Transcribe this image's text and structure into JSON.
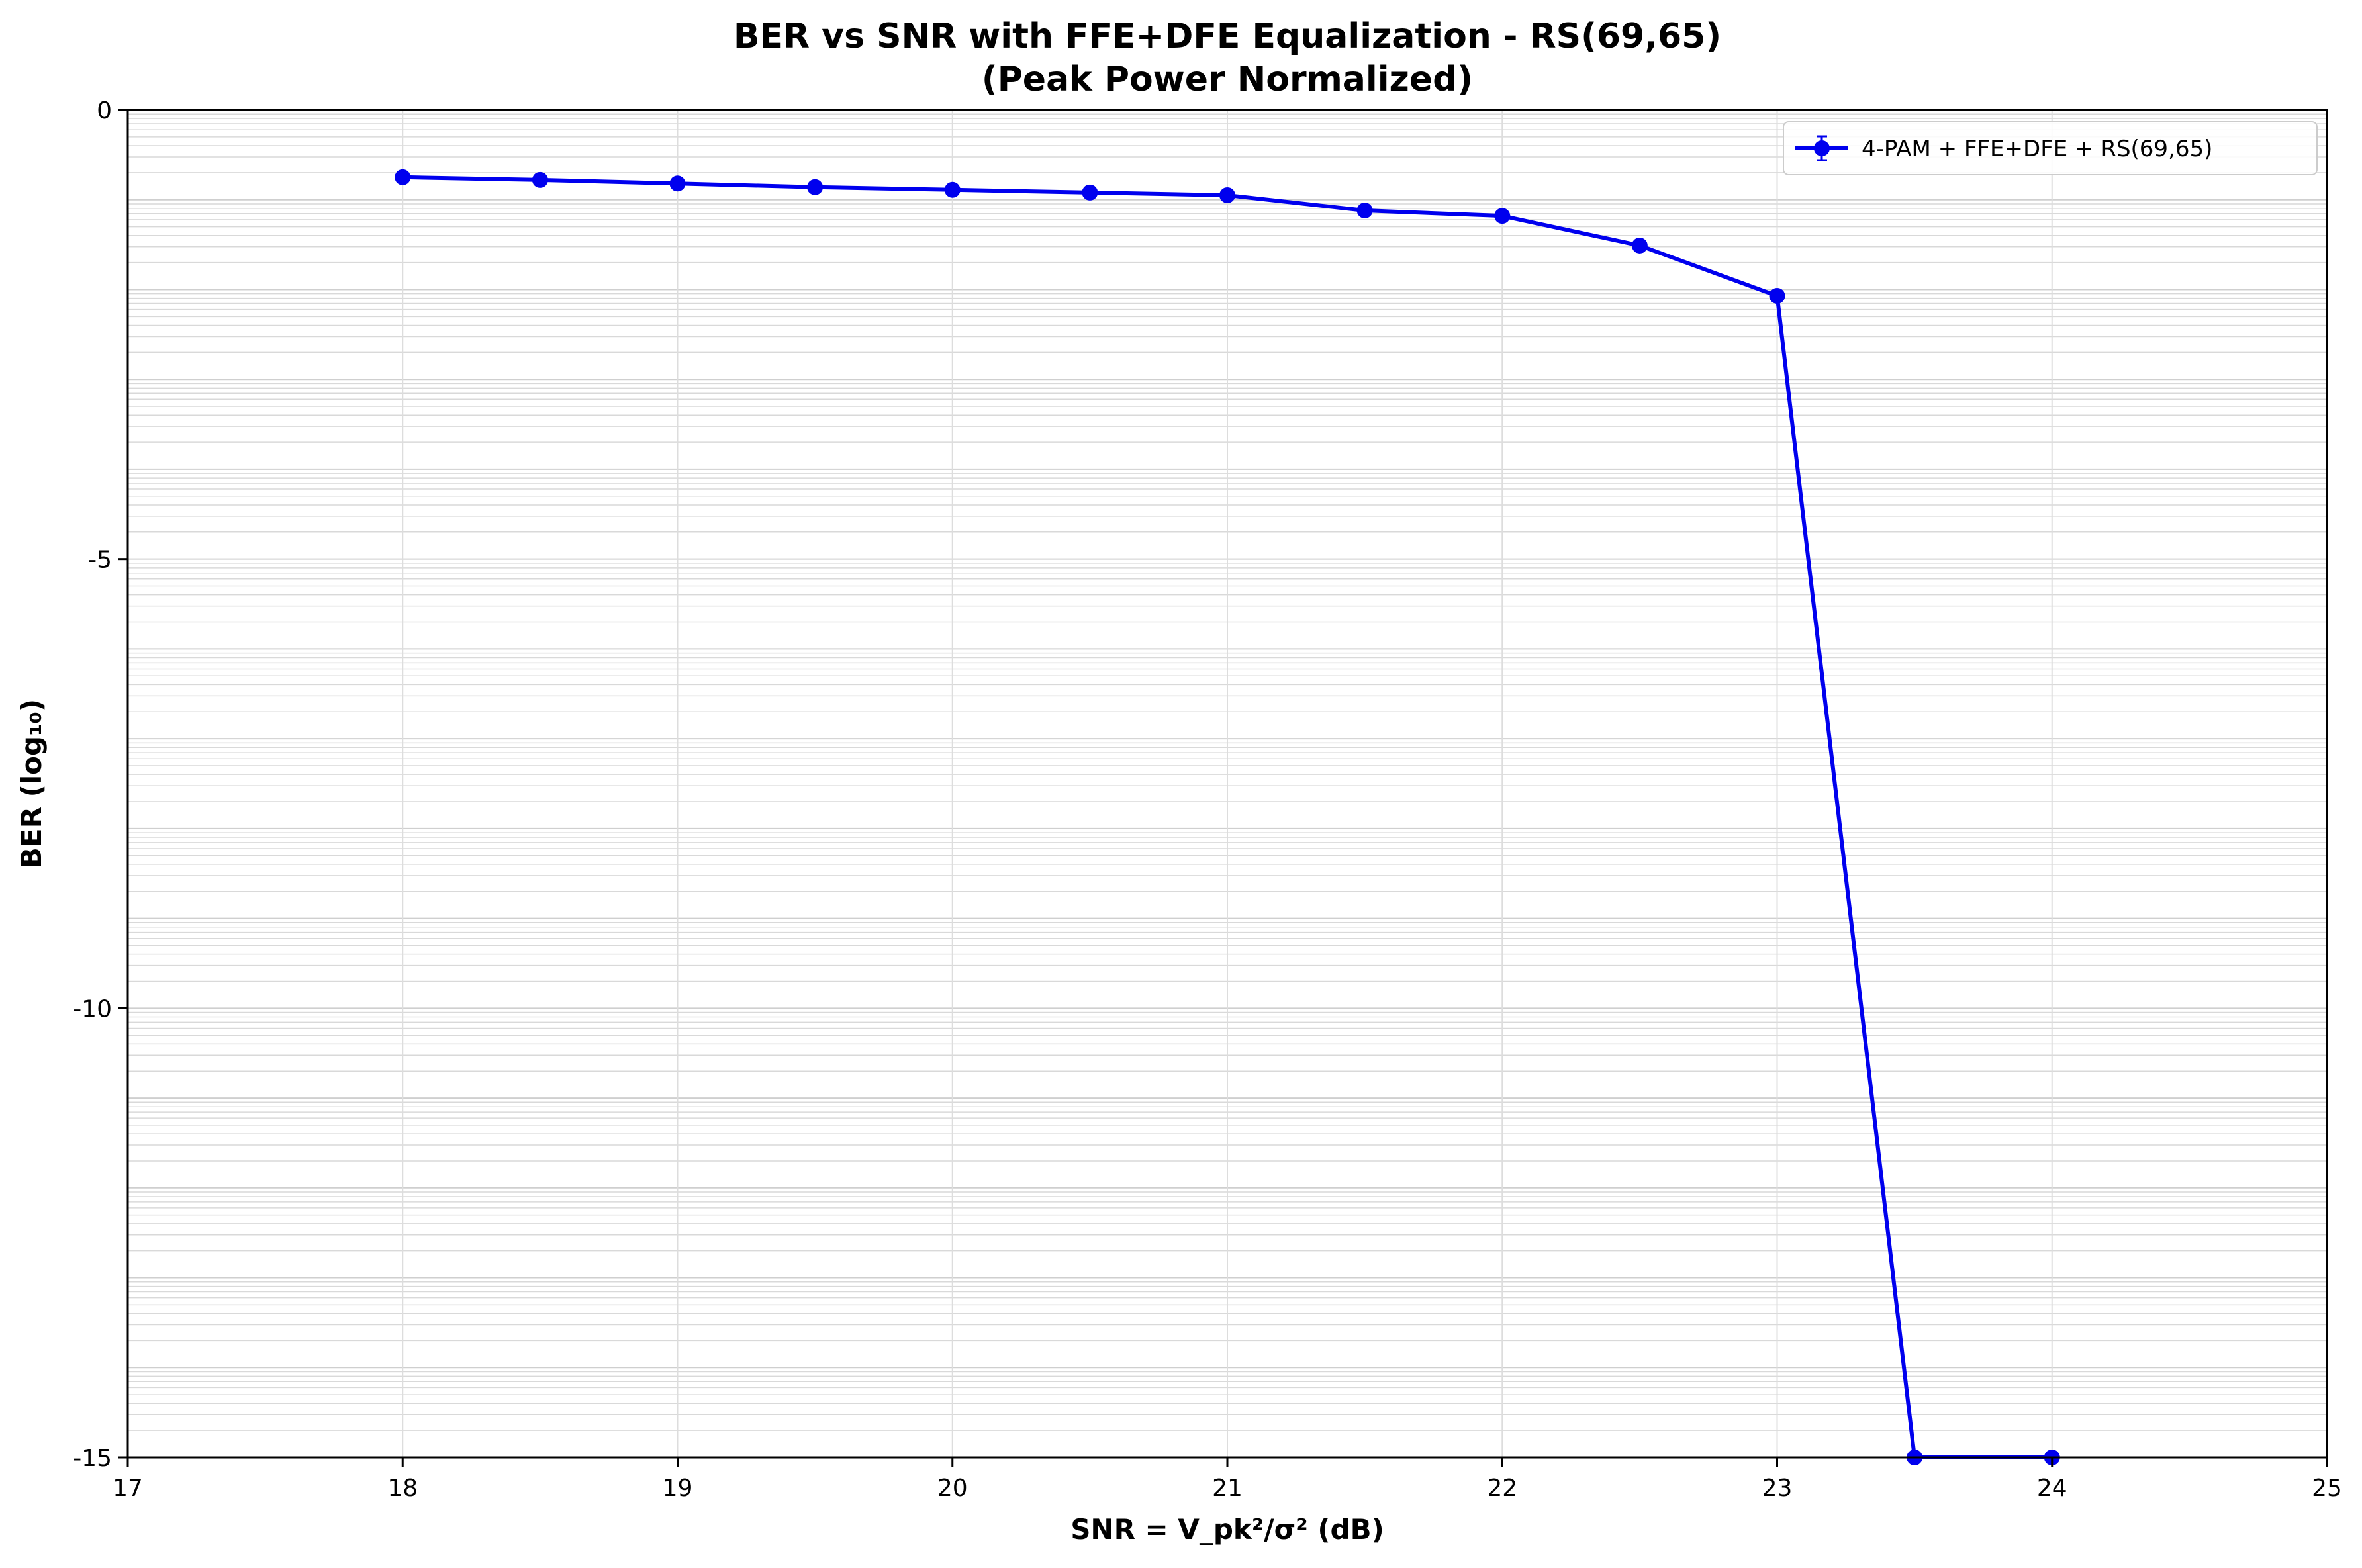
{
  "chart_data": {
    "type": "line",
    "title": "BER vs SNR with FFE+DFE Equalization - RS(69,65)",
    "subtitle": "(Peak Power Normalized)",
    "xlabel": "SNR = V_pk²/σ² (dB)",
    "ylabel": "BER (log₁₀)",
    "xlim": [
      17,
      25
    ],
    "ylim": [
      -15,
      0
    ],
    "xticks": [
      17,
      18,
      19,
      20,
      21,
      22,
      23,
      24,
      25
    ],
    "yticks": [
      0,
      -5,
      -10,
      -15
    ],
    "grid": true,
    "minor_grid_y": true,
    "legend_position": "top-right",
    "series": [
      {
        "name": "4-PAM + FFE+DFE + RS(69,65)",
        "color": "#0000ee",
        "marker": "circle",
        "x": [
          18,
          18.5,
          19,
          19.5,
          20,
          20.5,
          21,
          21.5,
          22,
          22.5,
          23,
          23.5,
          24
        ],
        "y": [
          -0.75,
          -0.78,
          -0.82,
          -0.86,
          -0.89,
          -0.92,
          -0.95,
          -1.12,
          -1.18,
          -1.51,
          -2.07,
          -15,
          -15
        ]
      }
    ]
  }
}
